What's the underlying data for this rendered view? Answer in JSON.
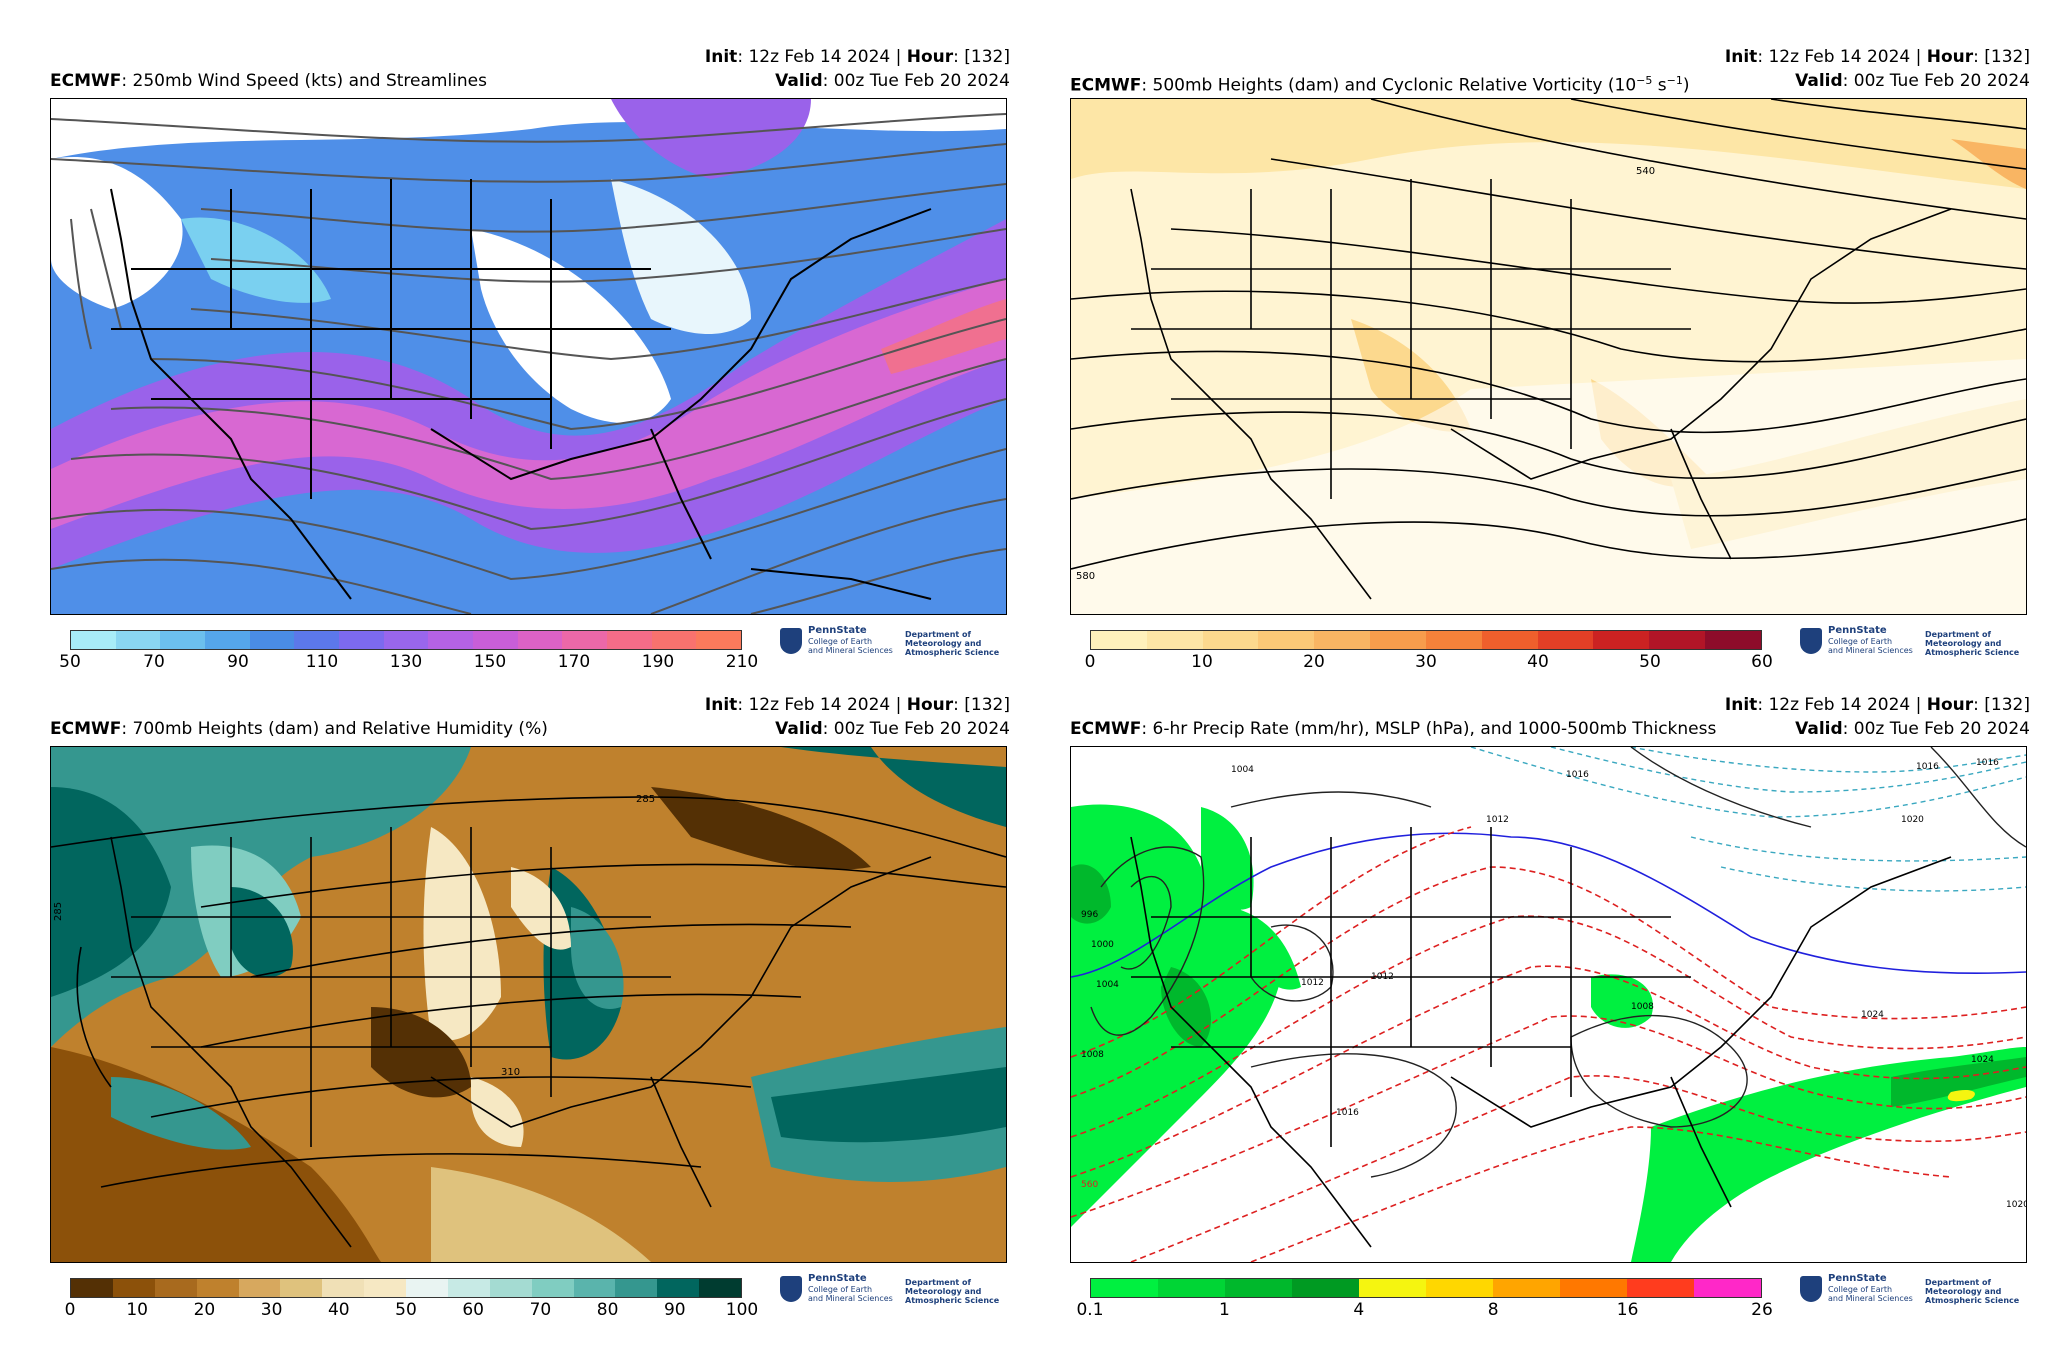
{
  "common": {
    "init_label": "Init",
    "init_value": ": 12z Feb 14 2024 | ",
    "hour_label": "Hour",
    "hour_value": ": [132]",
    "valid_label": "Valid",
    "valid_value": ": 00z Tue Feb 20 2024",
    "model": "ECMWF",
    "logo": {
      "psu": "PennState",
      "college_1": "College of Earth",
      "college_2": "and Mineral Sciences",
      "dept_1": "Department of",
      "dept_2": "Meteorology and",
      "dept_3": "Atmospheric Science"
    }
  },
  "panels": [
    {
      "title": ": 250mb Wind Speed (kts) and Streamlines",
      "colorbar": {
        "colors": [
          "#a8ecf8",
          "#8ad6f2",
          "#6cc0ee",
          "#55a6ea",
          "#4a8ce6",
          "#5c78ea",
          "#7c6aee",
          "#9966ec",
          "#b462e4",
          "#c85ed8",
          "#dc62c6",
          "#ec68a8",
          "#f46c88",
          "#f8726e",
          "#fa7a5c"
        ],
        "ticks": [
          "50",
          "70",
          "90",
          "110",
          "130",
          "150",
          "170",
          "190",
          "210"
        ]
      },
      "map_colors": [
        "#ffffff",
        "#7ad0f0",
        "#4f8fe8",
        "#9a62ea",
        "#d868d2",
        "#f07090"
      ]
    },
    {
      "title": ": 500mb Heights (dam) and Cyclonic Relative Vorticity (10",
      "title_sup": "−5",
      "title_tail": " s",
      "title_sup2": "−1",
      "title_end": ")",
      "colorbar": {
        "colors": [
          "#fff1bc",
          "#fde6a6",
          "#fcd98e",
          "#fbc877",
          "#f9b563",
          "#f79d4c",
          "#f5823a",
          "#ef5f2c",
          "#e33f26",
          "#cc2222",
          "#b21527",
          "#8e0c2a"
        ],
        "ticks": [
          "0",
          "10",
          "20",
          "30",
          "40",
          "50",
          "60"
        ]
      },
      "contour_labels": [
        "540",
        "580"
      ]
    },
    {
      "title": ": 700mb Heights (dam) and Relative Humidity (%)",
      "colorbar": {
        "colors": [
          "#543005",
          "#8c510a",
          "#a86a1e",
          "#bf812d",
          "#d7a85e",
          "#dfc27d",
          "#f0e0b6",
          "#f6e8c3",
          "#e9f4f2",
          "#c7eae5",
          "#a4dbd2",
          "#80cdc1",
          "#5ab4ac",
          "#35978f",
          "#01665e",
          "#003c30"
        ],
        "ticks": [
          "0",
          "10",
          "20",
          "30",
          "40",
          "50",
          "60",
          "70",
          "80",
          "90",
          "100"
        ]
      },
      "contour_labels": [
        "285",
        "285",
        "310"
      ]
    },
    {
      "title": ": 6-hr Precip Rate (mm/hr), MSLP (hPa), and 1000-500mb Thickness",
      "colorbar": {
        "colors": [
          "#00f040",
          "#00d535",
          "#00b82c",
          "#009a22",
          "#f5f510",
          "#ffd700",
          "#ffa500",
          "#ff7800",
          "#ff3c1e",
          "#ff28c8"
        ],
        "ticks": [
          "0.1",
          "1",
          "4",
          "8",
          "16",
          "26"
        ]
      },
      "contour_labels": [
        "1004",
        "1012",
        "1016",
        "1016",
        "1020",
        "1012",
        "1008",
        "996",
        "1000",
        "1004",
        "1008",
        "1012",
        "1016",
        "1016",
        "1024",
        "1024",
        "1020",
        "560"
      ]
    }
  ]
}
